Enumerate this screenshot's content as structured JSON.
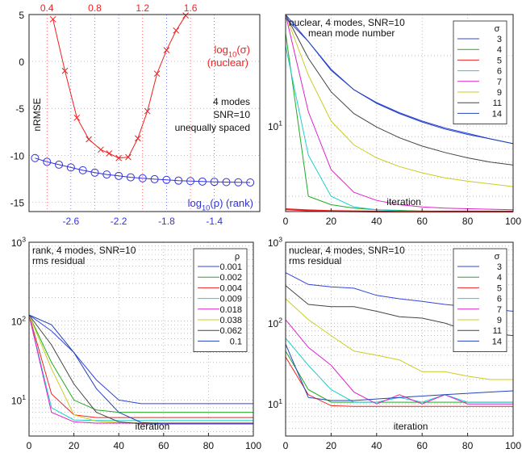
{
  "figure": {
    "panels": 4
  },
  "chart_data": [
    {
      "type": "line",
      "panel": "top-left",
      "annotation_lines": [
        "4 modes",
        "SNR=10",
        "unequally spaced"
      ],
      "ylabel": "nRMSE",
      "xlim": [
        -2.95,
        -1.02
      ],
      "ylim": [
        -16,
        5
      ],
      "x_ticks": [
        -2.6,
        -2.2,
        -1.8,
        -1.4
      ],
      "y_ticks": [
        -15,
        -10,
        -5,
        0,
        5
      ],
      "top_ticks": [
        "0.4",
        "0.8",
        "1.2",
        "1.6"
      ],
      "grid": true,
      "series": [
        {
          "name": "log10(σ) (nuclear)",
          "label_main": "log",
          "label_sub": "10",
          "label_arg": "(σ)",
          "label_line2": "(nuclear)",
          "color": "#ee2222",
          "marker": "x",
          "x": [
            -2.75,
            -2.65,
            -2.55,
            -2.45,
            -2.35,
            -2.28,
            -2.2,
            -2.12,
            -2.04,
            -1.96,
            -1.88,
            -1.8,
            -1.72,
            -1.64
          ],
          "values": [
            4.5,
            -1.0,
            -6.0,
            -8.3,
            -9.4,
            -9.8,
            -10.3,
            -10.2,
            -8.2,
            -5.3,
            -1.3,
            1.2,
            3.3,
            4.9
          ]
        },
        {
          "name": "log10(ρ) (rank)",
          "label_main": "log",
          "label_sub": "10",
          "label_arg": "(ρ) (rank)",
          "color": "#3333dd",
          "marker": "o",
          "x": [
            -2.9,
            -2.8,
            -2.7,
            -2.6,
            -2.5,
            -2.4,
            -2.3,
            -2.2,
            -2.1,
            -2.0,
            -1.9,
            -1.8,
            -1.7,
            -1.6,
            -1.5,
            -1.4,
            -1.3,
            -1.2,
            -1.1
          ],
          "values": [
            -10.3,
            -10.7,
            -11.0,
            -11.3,
            -11.6,
            -11.85,
            -12.05,
            -12.2,
            -12.35,
            -12.45,
            -12.55,
            -12.62,
            -12.7,
            -12.75,
            -12.8,
            -12.83,
            -12.86,
            -12.88,
            -12.9
          ]
        }
      ]
    },
    {
      "type": "line",
      "panel": "top-right",
      "title_lines": [
        "nuclear, 4 modes, SNR=10",
        "mean mode number"
      ],
      "xlabel": "iteration",
      "xlim": [
        0,
        100
      ],
      "ylim": [
        4.3,
        30
      ],
      "yscale": "log",
      "x_ticks": [
        0,
        20,
        40,
        60,
        80,
        100
      ],
      "y_tick_label_main": "10",
      "y_tick_label_sup": "1",
      "grid": true,
      "legend_title": "σ",
      "legend_position": "top-right",
      "series": [
        {
          "name": "3",
          "color": "#3344dd",
          "values": [
            30,
            23,
            17.5,
            14.3,
            12.6,
            11.4,
            10.5,
            9.8,
            9.3,
            8.8,
            8.4
          ]
        },
        {
          "name": "4",
          "color": "#22aa22",
          "values": [
            25,
            5.0,
            4.6,
            4.45,
            4.38,
            4.35,
            4.32,
            4.31,
            4.3,
            4.3,
            4.3
          ]
        },
        {
          "name": "5",
          "color": "#ee2222",
          "values": [
            4.4,
            4.35,
            4.32,
            4.31,
            4.3,
            4.3,
            4.3,
            4.3,
            4.3,
            4.3,
            4.3
          ]
        },
        {
          "name": "6",
          "color": "#22cccc",
          "values": [
            22,
            7.5,
            5.0,
            4.5,
            4.38,
            4.33,
            4.31,
            4.3,
            4.3,
            4.3,
            4.3
          ]
        },
        {
          "name": "7",
          "color": "#dd22cc",
          "values": [
            30,
            11.5,
            6.5,
            5.2,
            4.8,
            4.6,
            4.5,
            4.45,
            4.42,
            4.4,
            4.38
          ]
        },
        {
          "name": "9",
          "color": "#cccc22",
          "values": [
            30,
            16.5,
            10.5,
            8.3,
            7.3,
            6.7,
            6.3,
            6.0,
            5.8,
            5.65,
            5.5
          ]
        },
        {
          "name": "11",
          "color": "#444444",
          "values": [
            30,
            19.5,
            14.0,
            11.3,
            9.9,
            8.9,
            8.2,
            7.7,
            7.3,
            7.0,
            6.8
          ]
        },
        {
          "name": "14",
          "color": "#2244bb",
          "values": [
            29,
            23,
            17.3,
            14.3,
            12.5,
            11.3,
            10.4,
            9.7,
            9.2,
            8.8,
            8.4
          ]
        }
      ]
    },
    {
      "type": "line",
      "panel": "bottom-left",
      "title_lines": [
        "rank, 4 modes, SNR=10",
        "rms residual"
      ],
      "xlabel": "iteration",
      "xlim": [
        0,
        100
      ],
      "ylim": [
        3.5,
        1000
      ],
      "yscale": "log",
      "x_ticks": [
        0,
        20,
        40,
        60,
        80,
        100
      ],
      "y_tick_label_main": "10",
      "y_tick_sups": [
        "1",
        "2",
        "3"
      ],
      "grid": true,
      "legend_title": "ρ",
      "legend_position": "top-right",
      "series": [
        {
          "name": "0.001",
          "color": "#3344dd",
          "values": [
            120,
            75,
            40,
            18,
            10,
            9,
            9,
            9,
            9,
            9,
            9
          ]
        },
        {
          "name": "0.002",
          "color": "#22aa22",
          "values": [
            120,
            30,
            10,
            7.5,
            7,
            7,
            7,
            7,
            7,
            7,
            7
          ]
        },
        {
          "name": "0.004",
          "color": "#ee2222",
          "values": [
            120,
            12,
            6.5,
            6,
            6,
            6,
            6,
            6,
            6,
            6,
            6
          ]
        },
        {
          "name": "0.009",
          "color": "#22cccc",
          "values": [
            120,
            8,
            5.6,
            5.5,
            5.5,
            5.5,
            5.5,
            5.5,
            5.5,
            5.5,
            5.5
          ]
        },
        {
          "name": "0.018",
          "color": "#dd22cc",
          "values": [
            120,
            7,
            5.3,
            5.1,
            5.1,
            5.1,
            5.1,
            5.1,
            5.1,
            5.1,
            5.1
          ]
        },
        {
          "name": "0.038",
          "color": "#cccc22",
          "values": [
            120,
            25,
            6.5,
            5.4,
            5.2,
            5.2,
            5.2,
            5.2,
            5.2,
            5.2,
            5.2
          ]
        },
        {
          "name": "0.062",
          "color": "#444444",
          "values": [
            120,
            50,
            16,
            7,
            5.3,
            5.0,
            5.0,
            5.0,
            5.0,
            5.0,
            5.0
          ]
        },
        {
          "name": "0.1",
          "color": "#2244bb",
          "values": [
            120,
            90,
            40,
            14,
            7,
            5.2,
            5.0,
            5.0,
            5.0,
            5.0,
            5.0
          ]
        }
      ]
    },
    {
      "type": "line",
      "panel": "bottom-right",
      "title_lines": [
        "nuclear, 4 modes, SNR=10",
        "rms residual"
      ],
      "xlabel": "iteration",
      "xlim": [
        0,
        100
      ],
      "ylim": [
        4,
        1000
      ],
      "yscale": "log",
      "x_ticks": [
        0,
        20,
        40,
        60,
        80,
        100
      ],
      "y_tick_label_main": "10",
      "y_tick_sups": [
        "1",
        "2",
        "3"
      ],
      "grid": true,
      "legend_title": "σ",
      "legend_position": "top-right",
      "series": [
        {
          "name": "3",
          "color": "#3344dd",
          "values": [
            420,
            300,
            280,
            270,
            220,
            200,
            185,
            170,
            160,
            150,
            140
          ]
        },
        {
          "name": "4",
          "color": "#22aa22",
          "values": [
            45,
            15,
            10.5,
            10.5,
            10.5,
            10.5,
            10.5,
            10.5,
            10.5,
            10.5,
            10.5
          ]
        },
        {
          "name": "5",
          "color": "#ee2222",
          "values": [
            38,
            13,
            9.5,
            9.3,
            9.3,
            9.3,
            9.3,
            9.3,
            9.3,
            9.3,
            9.3
          ]
        },
        {
          "name": "6",
          "color": "#22cccc",
          "values": [
            65,
            30,
            15,
            10.5,
            10.5,
            12,
            10.5,
            13,
            10.5,
            10.5,
            10.5
          ]
        },
        {
          "name": "7",
          "color": "#dd22cc",
          "values": [
            110,
            50,
            30,
            14,
            10,
            13,
            10,
            13,
            10,
            10,
            10
          ]
        },
        {
          "name": "9",
          "color": "#cccc22",
          "values": [
            200,
            110,
            70,
            45,
            40,
            35,
            25,
            25,
            22,
            20,
            20
          ]
        },
        {
          "name": "11",
          "color": "#444444",
          "values": [
            290,
            170,
            160,
            160,
            140,
            120,
            115,
            100,
            80,
            75,
            70
          ]
        },
        {
          "name": "14",
          "color": "#2244bb",
          "values": [
            55,
            12,
            11,
            11,
            11.5,
            12,
            12.5,
            13,
            13.5,
            14,
            14.5
          ]
        }
      ]
    }
  ]
}
